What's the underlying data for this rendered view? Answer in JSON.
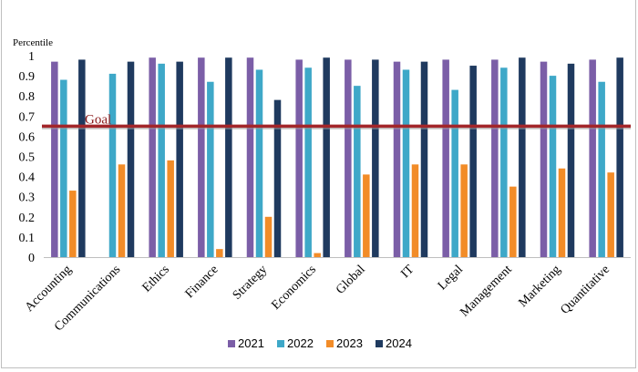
{
  "chart_data": {
    "type": "bar",
    "ylabel": "Percentile",
    "ylim": [
      0,
      1
    ],
    "yticks": [
      "0",
      "0.1",
      "0.2",
      "0.3",
      "0.4",
      "0.5",
      "0.6",
      "0.7",
      "0.8",
      "0.9",
      "1"
    ],
    "categories": [
      "Accounting",
      "Communications",
      "Ethics",
      "Finance",
      "Strategy",
      "Economics",
      "Global",
      "IT",
      "Legal",
      "Management",
      "Marketing",
      "Quantitative"
    ],
    "series": [
      {
        "name": "2021",
        "color": "#7b5ea7",
        "values": [
          0.97,
          null,
          0.99,
          0.99,
          0.99,
          0.98,
          0.98,
          0.97,
          0.98,
          0.98,
          0.97,
          0.98
        ]
      },
      {
        "name": "2022",
        "color": "#3ea8c8",
        "values": [
          0.88,
          0.91,
          0.96,
          0.87,
          0.93,
          0.94,
          0.85,
          0.93,
          0.83,
          0.94,
          0.9,
          0.87
        ]
      },
      {
        "name": "2023",
        "color": "#f28c28",
        "values": [
          0.33,
          0.46,
          0.48,
          0.04,
          0.2,
          0.02,
          0.41,
          0.46,
          0.46,
          0.35,
          0.44,
          0.42
        ]
      },
      {
        "name": "2024",
        "color": "#1f3a5f",
        "values": [
          0.98,
          0.97,
          0.97,
          0.99,
          0.78,
          0.99,
          0.98,
          0.97,
          0.95,
          0.99,
          0.96,
          0.99
        ]
      }
    ],
    "goal": {
      "label": "Goal",
      "value": 0.65,
      "color": "#a3262a"
    },
    "grid": false,
    "legend": "bottom"
  }
}
